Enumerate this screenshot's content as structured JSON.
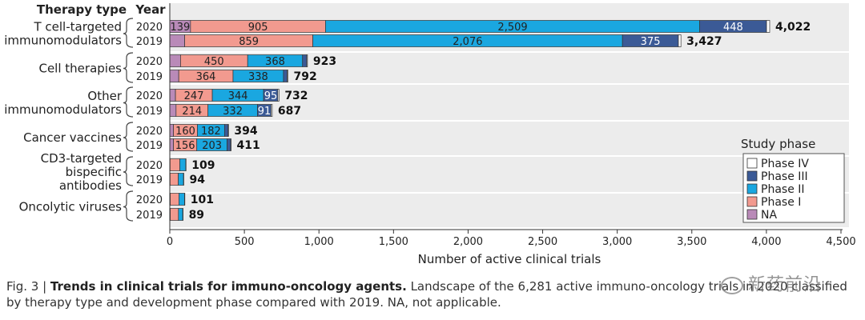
{
  "chart_data": {
    "type": "bar",
    "orientation": "horizontal",
    "stacked": true,
    "header_therapy": "Therapy type",
    "header_year": "Year",
    "xlabel": "Number of active clinical trials",
    "xlim": [
      0,
      4500
    ],
    "xticks": [
      0,
      500,
      1000,
      1500,
      2000,
      2500,
      3000,
      3500,
      4000,
      4500
    ],
    "xtick_labels": [
      "0",
      "500",
      "1,000",
      "1,500",
      "2,000",
      "2,500",
      "3,000",
      "3,500",
      "4,000",
      "4,500"
    ],
    "shaded_groups": true,
    "legend": {
      "title": "Study phase",
      "placement": "right",
      "items": [
        {
          "name": "Phase IV",
          "color": "#ffffff"
        },
        {
          "name": "Phase III",
          "color": "#3b5a96"
        },
        {
          "name": "Phase II",
          "color": "#1aa7e0"
        },
        {
          "name": "Phase I",
          "color": "#f29a8f"
        },
        {
          "name": "NA",
          "color": "#b98ab8"
        }
      ]
    },
    "series_order": [
      "NA",
      "Phase I",
      "Phase II",
      "Phase III",
      "Phase IV"
    ],
    "series_colors": {
      "NA": "#b98ab8",
      "Phase I": "#f29a8f",
      "Phase II": "#1aa7e0",
      "Phase III": "#3b5a96",
      "Phase IV": "#ffffff"
    },
    "groups": [
      {
        "name": "T cell-targeted immunomodulators",
        "label_lines": [
          "T cell-targeted",
          "immunomodulators"
        ],
        "rows": [
          {
            "year": "2020",
            "values": {
              "NA": 139,
              "Phase I": 905,
              "Phase II": 2509,
              "Phase III": 448,
              "Phase IV": 21
            },
            "labels": {
              "NA": "139",
              "Phase I": "905",
              "Phase II": "2,509",
              "Phase III": "448"
            },
            "total": "4,022"
          },
          {
            "year": "2019",
            "values": {
              "NA": 100,
              "Phase I": 859,
              "Phase II": 2076,
              "Phase III": 375,
              "Phase IV": 17
            },
            "labels": {
              "Phase I": "859",
              "Phase II": "2,076",
              "Phase III": "375"
            },
            "total": "3,427"
          }
        ]
      },
      {
        "name": "Cell therapies",
        "label_lines": [
          "Cell therapies"
        ],
        "rows": [
          {
            "year": "2020",
            "values": {
              "NA": 72,
              "Phase I": 450,
              "Phase II": 368,
              "Phase III": 28,
              "Phase IV": 5
            },
            "labels": {
              "Phase I": "450",
              "Phase II": "368"
            },
            "total": "923"
          },
          {
            "year": "2019",
            "values": {
              "NA": 60,
              "Phase I": 364,
              "Phase II": 338,
              "Phase III": 25,
              "Phase IV": 5
            },
            "labels": {
              "Phase I": "364",
              "Phase II": "338"
            },
            "total": "792"
          }
        ]
      },
      {
        "name": "Other immunomodulators",
        "label_lines": [
          "Other",
          "immunomodulators"
        ],
        "rows": [
          {
            "year": "2020",
            "values": {
              "NA": 38,
              "Phase I": 247,
              "Phase II": 344,
              "Phase III": 95,
              "Phase IV": 8
            },
            "labels": {
              "Phase I": "247",
              "Phase II": "344",
              "Phase III": "95"
            },
            "total": "732"
          },
          {
            "year": "2019",
            "values": {
              "NA": 42,
              "Phase I": 214,
              "Phase II": 332,
              "Phase III": 91,
              "Phase IV": 8
            },
            "labels": {
              "Phase I": "214",
              "Phase II": "332",
              "Phase III": "91"
            },
            "total": "687"
          }
        ]
      },
      {
        "name": "Cancer vaccines",
        "label_lines": [
          "Cancer vaccines"
        ],
        "rows": [
          {
            "year": "2020",
            "values": {
              "NA": 25,
              "Phase I": 160,
              "Phase II": 182,
              "Phase III": 24,
              "Phase IV": 3
            },
            "labels": {
              "Phase I": "160",
              "Phase II": "182"
            },
            "total": "394"
          },
          {
            "year": "2019",
            "values": {
              "NA": 25,
              "Phase I": 156,
              "Phase II": 203,
              "Phase III": 24,
              "Phase IV": 3
            },
            "labels": {
              "Phase I": "156",
              "Phase II": "203"
            },
            "total": "411"
          }
        ]
      },
      {
        "name": "CD3-targeted bispecific antibodies",
        "label_lines": [
          "CD3-targeted",
          "bispecific",
          "antibodies"
        ],
        "rows": [
          {
            "year": "2020",
            "values": {
              "NA": 2,
              "Phase I": 65,
              "Phase II": 40,
              "Phase III": 2,
              "Phase IV": 0
            },
            "labels": {},
            "total": "109"
          },
          {
            "year": "2019",
            "values": {
              "NA": 2,
              "Phase I": 55,
              "Phase II": 35,
              "Phase III": 2,
              "Phase IV": 0
            },
            "labels": {},
            "total": "94"
          }
        ]
      },
      {
        "name": "Oncolytic viruses",
        "label_lines": [
          "Oncolytic viruses"
        ],
        "rows": [
          {
            "year": "2020",
            "values": {
              "NA": 3,
              "Phase I": 58,
              "Phase II": 38,
              "Phase III": 2,
              "Phase IV": 0
            },
            "labels": {},
            "total": "101"
          },
          {
            "year": "2019",
            "values": {
              "NA": 3,
              "Phase I": 55,
              "Phase II": 29,
              "Phase III": 2,
              "Phase IV": 0
            },
            "labels": {},
            "total": "89"
          }
        ]
      }
    ]
  },
  "caption": {
    "fig_label": "Fig. 3 |",
    "bold_title": "Trends in clinical trials for immuno-oncology agents.",
    "text": "Landscape of the 6,281 active immuno-oncology trials in 2020 classified by therapy type and development phase compared with 2019. NA, not applicable."
  },
  "watermark": {
    "text": "新药前沿"
  }
}
